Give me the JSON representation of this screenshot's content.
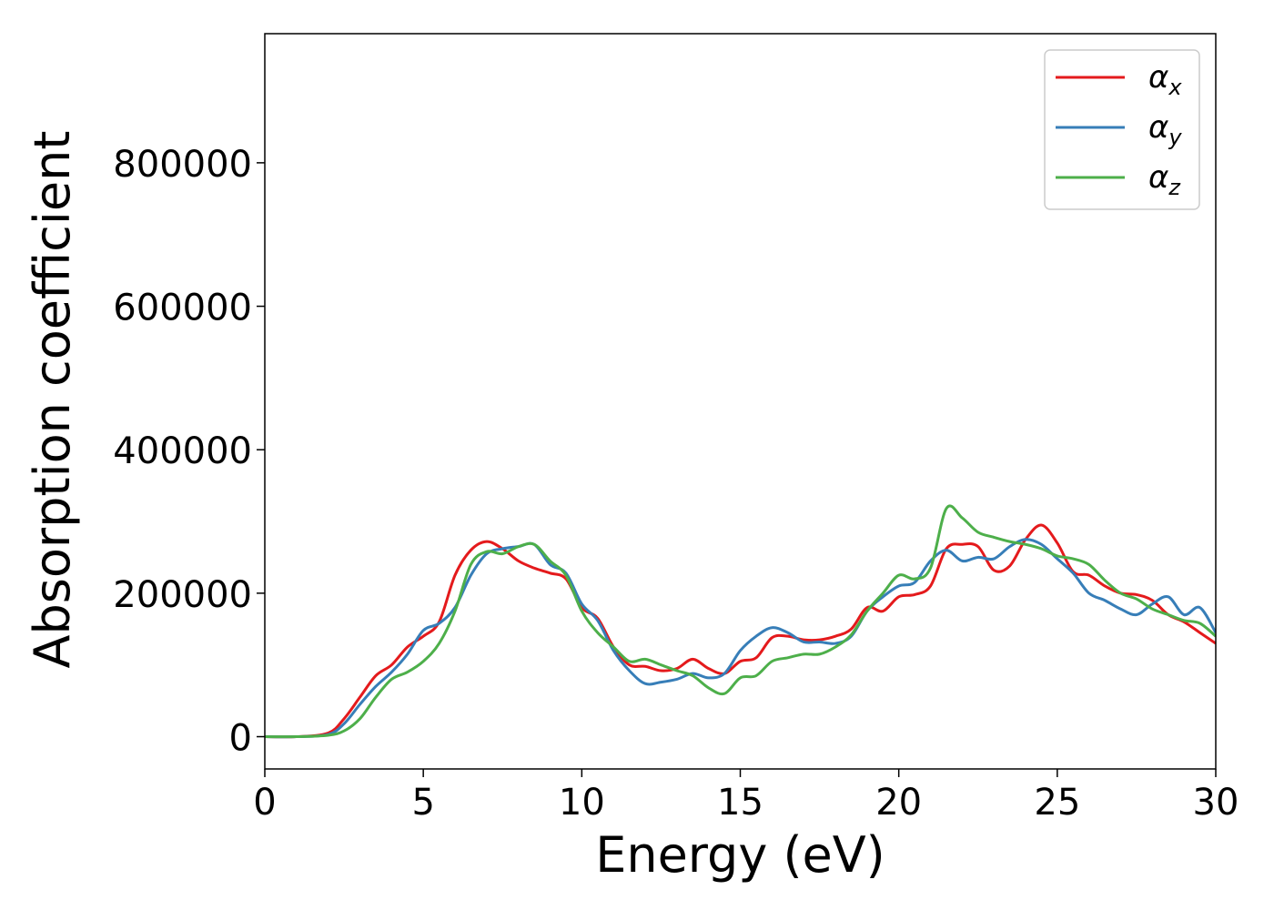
{
  "chart_data": {
    "type": "line",
    "xlabel": "Energy (eV)",
    "ylabel": "Absorption coefficient",
    "xlim": [
      0,
      30
    ],
    "ylim": [
      -45000,
      980000
    ],
    "xticks": [
      0,
      5,
      10,
      15,
      20,
      25,
      30
    ],
    "xtick_labels": [
      "0",
      "5",
      "10",
      "15",
      "20",
      "25",
      "30"
    ],
    "yticks": [
      0,
      200000,
      400000,
      600000,
      800000
    ],
    "ytick_labels": [
      "0",
      "200000",
      "400000",
      "600000",
      "800000"
    ],
    "grid": false,
    "legend_position": "top-right",
    "series": [
      {
        "name": "α",
        "subscript": "x",
        "color": "#e41a1c",
        "x": [
          0,
          1,
          2,
          2.5,
          3,
          3.5,
          4,
          4.5,
          5,
          5.5,
          6,
          6.5,
          7,
          7.5,
          8,
          8.5,
          9,
          9.5,
          10,
          10.5,
          11,
          11.5,
          12,
          12.5,
          13,
          13.5,
          14,
          14.5,
          15,
          15.5,
          16,
          16.5,
          17,
          17.5,
          18,
          18.5,
          19,
          19.5,
          20,
          20.5,
          21,
          21.5,
          22,
          22.5,
          23,
          23.5,
          24,
          24.5,
          25,
          25.5,
          26,
          26.5,
          27,
          27.5,
          28,
          28.5,
          29,
          29.5,
          30
        ],
        "y": [
          0,
          0,
          5000,
          25000,
          55000,
          85000,
          100000,
          125000,
          140000,
          160000,
          225000,
          260000,
          272000,
          262000,
          245000,
          235000,
          228000,
          220000,
          180000,
          165000,
          125000,
          100000,
          98000,
          92000,
          95000,
          108000,
          95000,
          88000,
          105000,
          110000,
          138000,
          140000,
          135000,
          135000,
          140000,
          150000,
          180000,
          175000,
          195000,
          198000,
          210000,
          262000,
          268000,
          265000,
          232000,
          238000,
          275000,
          295000,
          270000,
          230000,
          225000,
          210000,
          200000,
          198000,
          190000,
          170000,
          160000,
          145000,
          130000
        ]
      },
      {
        "name": "α",
        "subscript": "y",
        "color": "#377eb8",
        "x": [
          0,
          1,
          2,
          2.5,
          3,
          3.5,
          4,
          4.5,
          5,
          5.5,
          6,
          6.5,
          7,
          7.5,
          8,
          8.5,
          9,
          9.5,
          10,
          10.5,
          11,
          11.5,
          12,
          12.5,
          13,
          13.5,
          14,
          14.5,
          15,
          15.5,
          16,
          16.5,
          17,
          17.5,
          18,
          18.5,
          19,
          19.5,
          20,
          20.5,
          21,
          21.5,
          22,
          22.5,
          23,
          23.5,
          24,
          24.5,
          25,
          25.5,
          26,
          26.5,
          27,
          27.5,
          28,
          28.5,
          29,
          29.5,
          30
        ],
        "y": [
          0,
          0,
          3000,
          18000,
          45000,
          70000,
          90000,
          115000,
          148000,
          158000,
          180000,
          225000,
          255000,
          262000,
          265000,
          268000,
          240000,
          228000,
          185000,
          162000,
          120000,
          92000,
          74000,
          76000,
          80000,
          88000,
          82000,
          88000,
          120000,
          140000,
          152000,
          145000,
          132000,
          132000,
          130000,
          140000,
          175000,
          195000,
          210000,
          215000,
          245000,
          260000,
          245000,
          250000,
          248000,
          265000,
          275000,
          268000,
          248000,
          228000,
          200000,
          190000,
          178000,
          170000,
          185000,
          195000,
          170000,
          180000,
          145000
        ]
      },
      {
        "name": "α",
        "subscript": "z",
        "color": "#4daf4a",
        "x": [
          0,
          1,
          2,
          2.5,
          3,
          3.5,
          4,
          4.5,
          5,
          5.5,
          6,
          6.5,
          7,
          7.5,
          8,
          8.5,
          9,
          9.5,
          10,
          10.5,
          11,
          11.5,
          12,
          12.5,
          13,
          13.5,
          14,
          14.5,
          15,
          15.5,
          16,
          16.5,
          17,
          17.5,
          18,
          18.5,
          19,
          19.5,
          20,
          20.5,
          21,
          21.5,
          22,
          22.5,
          23,
          23.5,
          24,
          24.5,
          25,
          25.5,
          26,
          26.5,
          27,
          27.5,
          28,
          28.5,
          29,
          29.5,
          30
        ],
        "y": [
          0,
          0,
          2000,
          8000,
          25000,
          55000,
          80000,
          90000,
          105000,
          130000,
          175000,
          240000,
          258000,
          255000,
          265000,
          268000,
          245000,
          225000,
          175000,
          145000,
          125000,
          105000,
          108000,
          100000,
          92000,
          85000,
          68000,
          60000,
          82000,
          85000,
          105000,
          110000,
          115000,
          115000,
          125000,
          142000,
          175000,
          200000,
          225000,
          220000,
          235000,
          318000,
          305000,
          285000,
          278000,
          272000,
          268000,
          262000,
          252000,
          248000,
          240000,
          218000,
          200000,
          192000,
          178000,
          170000,
          162000,
          158000,
          140000
        ]
      }
    ]
  }
}
